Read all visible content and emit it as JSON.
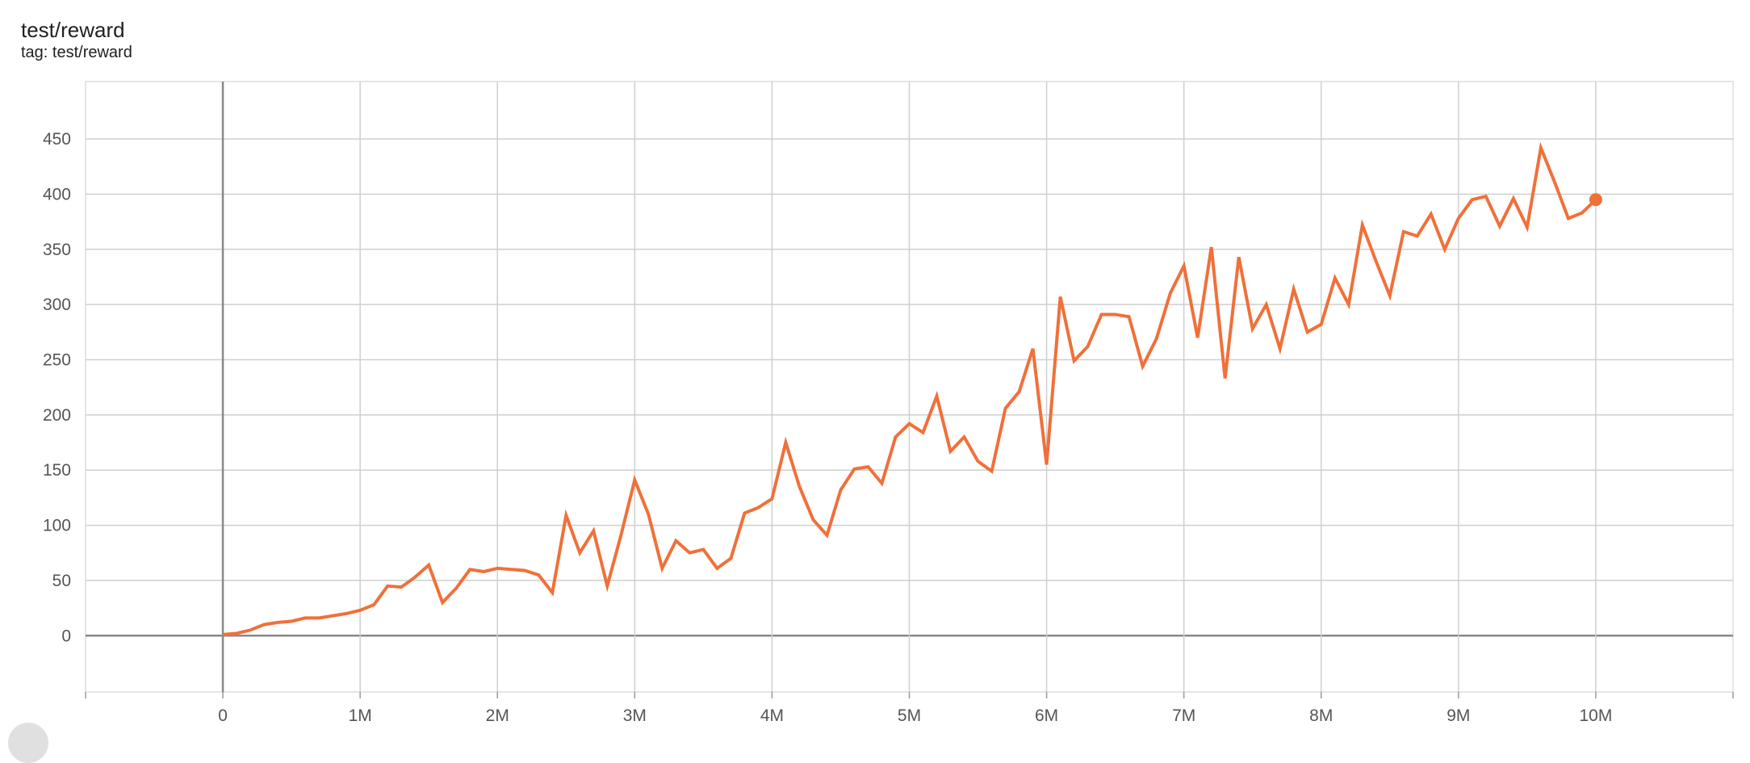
{
  "header": {
    "title": "test/reward",
    "tag": "tag: test/reward"
  },
  "chart_data": {
    "type": "line",
    "title": "test/reward",
    "xlabel": "",
    "ylabel": "",
    "xlim": [
      -1000000,
      11000000
    ],
    "ylim": [
      -51,
      502
    ],
    "grid": true,
    "x_ticks": [
      0,
      1000000,
      2000000,
      3000000,
      4000000,
      5000000,
      6000000,
      7000000,
      8000000,
      9000000,
      10000000
    ],
    "x_tick_labels": [
      "0",
      "1M",
      "2M",
      "3M",
      "4M",
      "5M",
      "6M",
      "7M",
      "8M",
      "9M",
      "10M"
    ],
    "y_ticks": [
      0,
      50,
      100,
      150,
      200,
      250,
      300,
      350,
      400,
      450
    ],
    "y_tick_labels": [
      "0",
      "50",
      "100",
      "150",
      "200",
      "250",
      "300",
      "350",
      "400",
      "450"
    ],
    "color": "#f0703a",
    "series": [
      {
        "x_step": 100000,
        "values": [
          1,
          2,
          5,
          10,
          12,
          13,
          16,
          16,
          18,
          20,
          23,
          28,
          45,
          44,
          53,
          64,
          30,
          43,
          60,
          58,
          61,
          60,
          59,
          55,
          39,
          109,
          75,
          95,
          45,
          91,
          141,
          110,
          61,
          86,
          75,
          78,
          61,
          70,
          111,
          116,
          124,
          175,
          135,
          105,
          91,
          132,
          151,
          153,
          138,
          180,
          192,
          184,
          217,
          167,
          180,
          158,
          149,
          206,
          221,
          260,
          155,
          307,
          249,
          262,
          291,
          291,
          289,
          244,
          269,
          310,
          335,
          270,
          352,
          233,
          343,
          278,
          300,
          260,
          314,
          275,
          282,
          324,
          300,
          372,
          339,
          308,
          366,
          362,
          382,
          350,
          378,
          395,
          398,
          371,
          396,
          370,
          442,
          411,
          378,
          383,
          395
        ]
      }
    ]
  }
}
